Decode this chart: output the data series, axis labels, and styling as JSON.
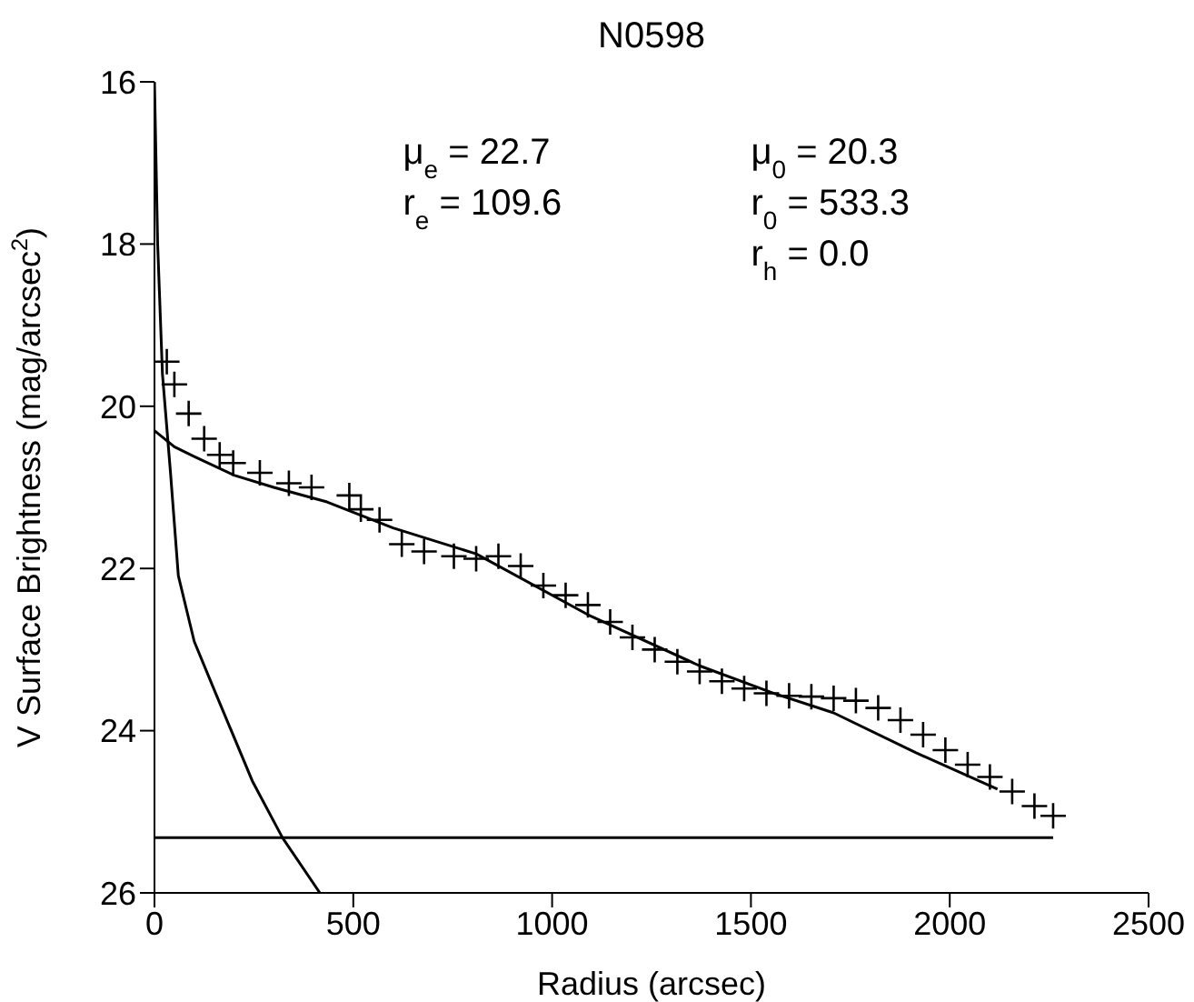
{
  "chart_data": {
    "type": "scatter",
    "title": "N0598",
    "xlabel": "Radius (arcsec)",
    "ylabel": "V Surface Brightness (mag/arcsec$^{2}$)",
    "annotations": [
      "μ$_{e}$ = 22.7",
      "r$_{e}$ = 109.6",
      "μ$_{0}$ = 20.3",
      "r$_{0}$ = 533.3",
      "r$_{h}$ = 0.0"
    ],
    "xlim": [
      0,
      2500
    ],
    "xticks": [
      0,
      500,
      1000,
      1500,
      2000,
      2500
    ],
    "ylim": [
      26,
      16
    ],
    "yticks": [
      26,
      24,
      22,
      20,
      18,
      16
    ],
    "grid": false,
    "legend": false,
    "series": [
      {
        "marker": "cross",
        "color": "#000000",
        "x": [
          31,
          50,
          86,
          125,
          164,
          198,
          265,
          338,
          395,
          490,
          519,
          566,
          622,
          678,
          753,
          809,
          865,
          921,
          978,
          1034,
          1090,
          1146,
          1202,
          1258,
          1315,
          1371,
          1427,
          1483,
          1539,
          1596,
          1652,
          1708,
          1764,
          1820,
          1876,
          1933,
          1989,
          2045,
          2101,
          2157,
          2213,
          2260
        ],
        "values": [
          19.45,
          19.73,
          20.09,
          20.4,
          20.6,
          20.7,
          20.82,
          20.95,
          21.0,
          21.1,
          21.27,
          21.4,
          21.7,
          21.79,
          21.85,
          21.88,
          21.85,
          21.97,
          22.21,
          22.33,
          22.45,
          22.66,
          22.85,
          23.0,
          23.15,
          23.27,
          23.39,
          23.48,
          23.54,
          23.57,
          23.58,
          23.6,
          23.63,
          23.72,
          23.87,
          24.05,
          24.24,
          24.42,
          24.57,
          24.75,
          24.93,
          25.05
        ]
      },
      {
        "type": "line",
        "color": "#000000",
        "x": [
          0,
          8,
          20,
          40,
          60,
          100,
          154,
          247,
          322,
          416
        ],
        "values": [
          16.0,
          18.0,
          19.6,
          20.8,
          22.09,
          22.9,
          23.54,
          24.63,
          25.32,
          26.0
        ]
      },
      {
        "type": "line",
        "color": "#000000",
        "x": [
          0,
          50,
          100,
          200,
          300,
          434,
          600,
          809,
          1090,
          1371,
          1558,
          1708,
          1914,
          2120
        ],
        "values": [
          20.3,
          20.5,
          20.62,
          20.85,
          21.0,
          21.18,
          21.5,
          21.82,
          22.57,
          23.2,
          23.54,
          23.78,
          24.27,
          24.72
        ]
      },
      {
        "type": "line",
        "color": "#000000",
        "x": [
          0,
          2260
        ],
        "values": [
          25.32,
          25.32
        ]
      }
    ]
  }
}
